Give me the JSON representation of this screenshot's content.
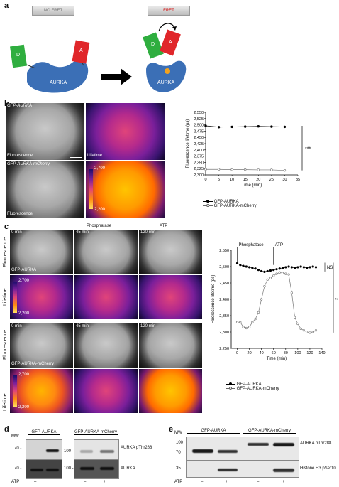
{
  "panel_a": {
    "label": "a",
    "no_fret": "NO FRET",
    "fret": "FRET",
    "d": "D",
    "a": "A",
    "aurka": "AURKA"
  },
  "panel_b": {
    "label": "b",
    "gfp_aurka": "GFP-AURKA",
    "gfp_aurka_mcherry": "GFP-AURKA-mCherry",
    "fluorescence": "Fluorescence",
    "lifetime": "Lifetime",
    "cb_top": "2,700",
    "cb_bottom": "2,200",
    "sig": "***",
    "legend_1": "GFP-AURKA",
    "legend_2": "GFP-AURKA-mCherry"
  },
  "panel_c": {
    "label": "c",
    "phosphatase": "Phosphatase",
    "atp": "ATP",
    "t0": "0 min",
    "t45": "45 min",
    "t120": "120 min",
    "fluorescence": "Fluorescence",
    "lifetime": "Lifetime",
    "gfp_aurka": "GFP-AURKA",
    "gfp_aurka_mcherry": "GFP-AURKA-mCherry",
    "cb_top": "2,700",
    "cb_bottom": "2,200",
    "ns": "NS",
    "sig": "***",
    "legend_1": "GFP-AURKA",
    "legend_2": "GFP-AURKA-mCherry"
  },
  "panel_d": {
    "label": "d",
    "mw": "MW",
    "group1": "GFP-AURKA",
    "group2": "GFP-AURKA-mCherry",
    "mw70": "70 -",
    "mw100": "100 -",
    "row1": "AURKA pThr288",
    "row2": "AURKA",
    "atp": "ATP",
    "minus": "–",
    "plus": "+"
  },
  "panel_e": {
    "label": "e",
    "mw": "MW",
    "group1": "GFP-AURKA",
    "group2": "GFP-AURKA-mCherry",
    "mw100": "100",
    "mw70": "70",
    "mw35": "35",
    "row1": "AURKA pThr288",
    "row2": "Histone H3 pSer10",
    "atp": "ATP",
    "minus": "–",
    "plus": "+"
  },
  "chart_data": [
    {
      "type": "line",
      "xlabel": "Time (min)",
      "ylabel": "Fluorescence lifetime (ps)",
      "xlim": [
        0,
        35
      ],
      "ylim": [
        2300,
        2550
      ],
      "xticks": [
        0,
        5,
        10,
        15,
        20,
        25,
        30,
        35
      ],
      "yticks": [
        2300,
        2325,
        2350,
        2375,
        2400,
        2425,
        2450,
        2475,
        2500,
        2525,
        2550
      ],
      "ytick_labels": [
        "2,300",
        "2,325",
        "2,350",
        "2,375",
        "2,400",
        "2,425",
        "2,450",
        "2,475",
        "2,500",
        "2,525",
        "2,550"
      ],
      "x": [
        0,
        5,
        10,
        15,
        20,
        25,
        30
      ],
      "series": [
        {
          "name": "GFP-AURKA",
          "values": [
            2496,
            2491,
            2492,
            2493,
            2494,
            2493,
            2492
          ],
          "marker": "filled"
        },
        {
          "name": "GFP-AURKA-mCherry",
          "values": [
            2322,
            2322,
            2321,
            2321,
            2320,
            2320,
            2318
          ],
          "marker": "open"
        }
      ],
      "annotation": "***"
    },
    {
      "type": "line",
      "xlabel": "Time (min)",
      "ylabel": "Fluorescence lifetime (ps)",
      "xlim": [
        -10,
        140
      ],
      "ylim": [
        2250,
        2550
      ],
      "xticks": [
        0,
        20,
        40,
        60,
        80,
        100,
        120,
        140
      ],
      "yticks": [
        2250,
        2300,
        2350,
        2400,
        2450,
        2500,
        2550
      ],
      "ytick_labels": [
        "2,250",
        "2,300",
        "2,350",
        "2,400",
        "2,450",
        "2,500",
        "2,550"
      ],
      "annotations": [
        "Phosphatase",
        "ATP",
        "NS",
        "***"
      ],
      "x": [
        0,
        5,
        10,
        15,
        20,
        25,
        30,
        35,
        40,
        45,
        50,
        55,
        60,
        65,
        70,
        75,
        80,
        85,
        90,
        95,
        100,
        105,
        110,
        115,
        120,
        125,
        130
      ],
      "series": [
        {
          "name": "GFP-AURKA",
          "marker": "filled",
          "values": [
            2510,
            2505,
            2502,
            2500,
            2498,
            2496,
            2494,
            2490,
            2486,
            2484,
            2486,
            2488,
            2490,
            2492,
            2494,
            2496,
            2498,
            2500,
            2498,
            2496,
            2498,
            2500,
            2498,
            2496,
            2498,
            2500,
            2498
          ]
        },
        {
          "name": "GFP-AURKA-mCherry",
          "marker": "open",
          "values": [
            2330,
            2330,
            2315,
            2312,
            2315,
            2330,
            2340,
            2360,
            2400,
            2440,
            2460,
            2465,
            2472,
            2478,
            2482,
            2480,
            2478,
            2476,
            2420,
            2345,
            2325,
            2310,
            2305,
            2300,
            2298,
            2300,
            2305
          ]
        }
      ]
    }
  ]
}
